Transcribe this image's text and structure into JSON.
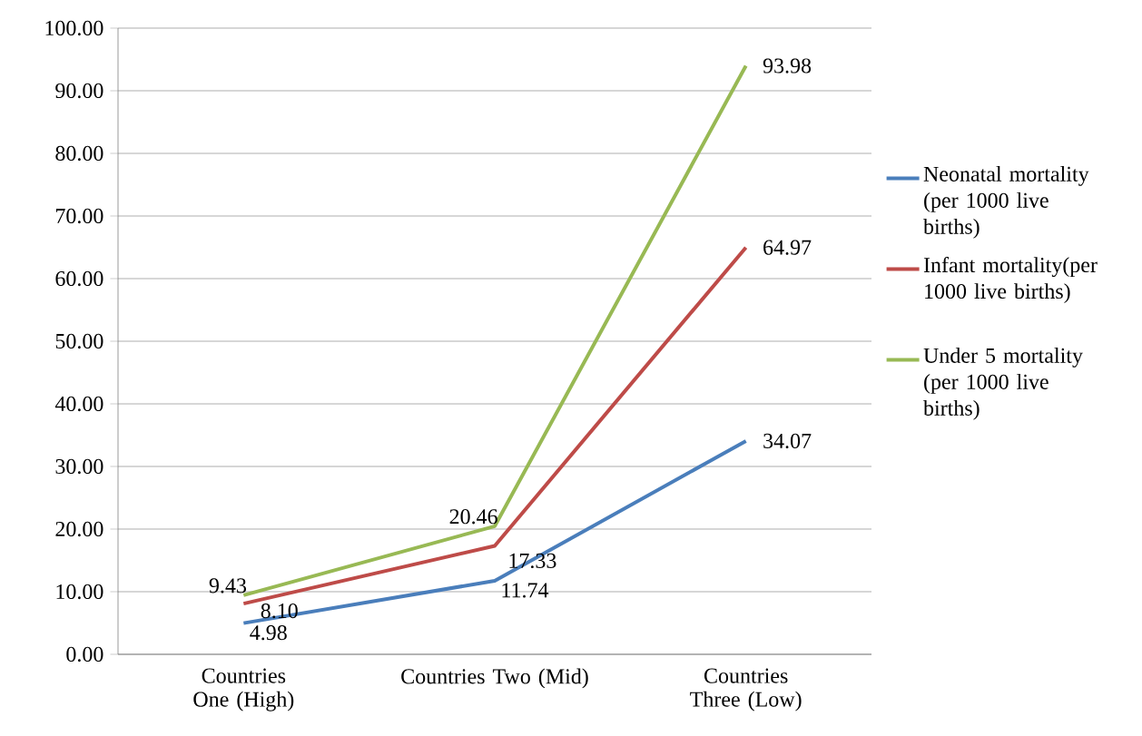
{
  "chart_data": {
    "type": "line",
    "categories": [
      "Countries One (High)",
      "Countries Two (Mid)",
      "Countries Three (Low)"
    ],
    "series": [
      {
        "name": "Neonatal mortality (per 1000 live births)",
        "color": "#4a7ebb",
        "values": [
          4.98,
          11.74,
          34.07
        ],
        "value_labels": [
          "4.98",
          "11.74",
          "34.07"
        ]
      },
      {
        "name": "Infant mortality(per 1000 live births)",
        "color": "#be4b48",
        "values": [
          8.1,
          17.33,
          64.97
        ],
        "value_labels": [
          "8.10",
          "17.33",
          "64.97"
        ]
      },
      {
        "name": "Under 5 mortality (per 1000 live births)",
        "color": "#98b954",
        "values": [
          9.43,
          20.46,
          93.98
        ],
        "value_labels": [
          "9.43",
          "20.46",
          "93.98"
        ]
      }
    ],
    "ylim": [
      0,
      100
    ],
    "yticks": [
      {
        "value": 0,
        "label": "0.00"
      },
      {
        "value": 10,
        "label": "10.00"
      },
      {
        "value": 20,
        "label": "20.00"
      },
      {
        "value": 30,
        "label": "30.00"
      },
      {
        "value": 40,
        "label": "40.00"
      },
      {
        "value": 50,
        "label": "50.00"
      },
      {
        "value": 60,
        "label": "60.00"
      },
      {
        "value": 70,
        "label": "70.00"
      },
      {
        "value": 80,
        "label": "80.00"
      },
      {
        "value": 90,
        "label": "90.00"
      },
      {
        "value": 100,
        "label": "100.00"
      }
    ],
    "grid": "y",
    "legend": "right",
    "marker": "none",
    "line_style": "solid"
  }
}
